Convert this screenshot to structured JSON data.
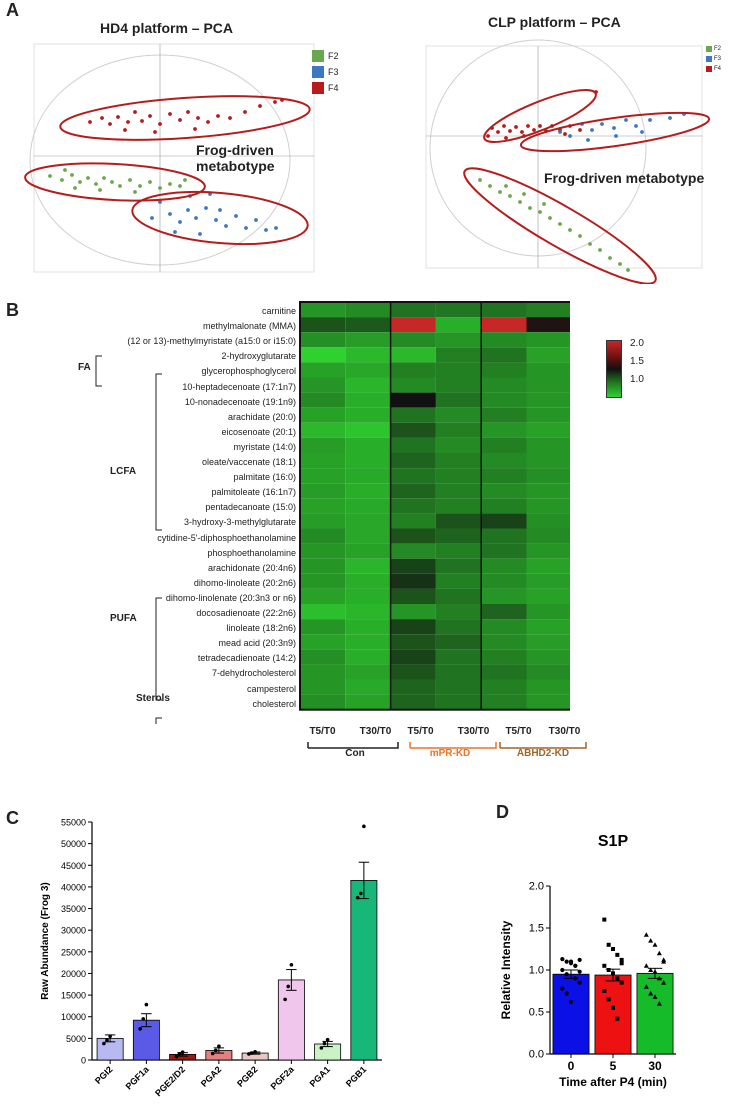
{
  "panels": {
    "a": "A",
    "b": "B",
    "c": "C",
    "d": "D"
  },
  "pca": {
    "hd4": {
      "title": "HD4 platform – PCA",
      "annotation": "Frog-driven metabotype"
    },
    "clp": {
      "title": "CLP platform – PCA",
      "annotation": "Frog-driven metabotype"
    },
    "legend": [
      {
        "label": "F2",
        "color": "#6aa84f"
      },
      {
        "label": "F3",
        "color": "#3d78c2"
      },
      {
        "label": "F4",
        "color": "#b71c1c"
      }
    ]
  },
  "heatmap": {
    "rows": [
      "carnitine",
      "methylmalonate (MMA)",
      "(12 or 13)-methylmyristate (a15:0 or i15:0)",
      "2-hydroxyglutarate",
      "glycerophosphoglycerol",
      "10-heptadecenoate (17:1n7)",
      "10-nonadecenoate (19:1n9)",
      "arachidate (20:0)",
      "eicosenoate (20:1)",
      "myristate (14:0)",
      "oleate/vaccenate (18:1)",
      "palmitate (16:0)",
      "palmitoleate (16:1n7)",
      "pentadecanoate (15:0)",
      "3-hydroxy-3-methylglutarate",
      "cytidine-5'-diphosphoethanolamine",
      "phosphoethanolamine",
      "arachidonate (20:4n6)",
      "dihomo-linoleate (20:2n6)",
      "dihomo-linolenate (20:3n3 or n6)",
      "docosadienoate (22:2n6)",
      "linoleate (18:2n6)",
      "mead acid (20:3n9)",
      "tetradecadienoate (14:2)",
      "7-dehydrocholesterol",
      "campesterol",
      "cholesterol"
    ],
    "groups": [
      "FA",
      "LCFA",
      "PUFA",
      "Sterols"
    ],
    "columns": [
      "T5/T0",
      "T30/T0",
      "T5/T0",
      "T30/T0",
      "T5/T0",
      "T30/T0"
    ],
    "conditions": [
      {
        "label": "Con",
        "color": "#222222"
      },
      {
        "label": "mPR-KD",
        "color": "#e8742a"
      },
      {
        "label": "ABHD2-KD",
        "color": "#a0652a"
      }
    ],
    "scale_ticks": [
      "2.0",
      "1.5",
      "1.0"
    ],
    "values": [
      [
        1.05,
        1.1,
        1.2,
        1.18,
        1.2,
        1.15
      ],
      [
        1.3,
        1.28,
        2.1,
        0.95,
        2.1,
        1.55
      ],
      [
        1.08,
        1.02,
        1.1,
        1.05,
        1.1,
        1.05
      ],
      [
        0.8,
        0.9,
        0.9,
        1.15,
        1.2,
        1.0
      ],
      [
        1.0,
        0.98,
        1.15,
        1.15,
        1.15,
        1.05
      ],
      [
        1.05,
        0.92,
        1.1,
        1.15,
        1.1,
        1.05
      ],
      [
        1.1,
        0.95,
        1.5,
        1.2,
        1.1,
        1.05
      ],
      [
        1.0,
        0.95,
        1.2,
        1.1,
        1.15,
        1.05
      ],
      [
        0.9,
        0.85,
        1.3,
        1.15,
        1.05,
        1.0
      ],
      [
        1.02,
        0.95,
        1.2,
        1.1,
        1.15,
        1.05
      ],
      [
        1.0,
        0.95,
        1.25,
        1.15,
        1.1,
        1.05
      ],
      [
        1.0,
        0.97,
        1.2,
        1.15,
        1.15,
        1.08
      ],
      [
        1.02,
        0.95,
        1.25,
        1.15,
        1.1,
        1.05
      ],
      [
        1.0,
        0.97,
        1.2,
        1.15,
        1.15,
        1.05
      ],
      [
        1.02,
        0.98,
        1.15,
        1.3,
        1.35,
        1.08
      ],
      [
        1.1,
        0.98,
        1.3,
        1.25,
        1.2,
        1.1
      ],
      [
        1.05,
        1.0,
        1.1,
        1.15,
        1.2,
        1.05
      ],
      [
        1.05,
        0.92,
        1.35,
        1.2,
        1.1,
        1.0
      ],
      [
        1.05,
        0.95,
        1.4,
        1.15,
        1.1,
        1.02
      ],
      [
        1.0,
        0.95,
        1.3,
        1.2,
        1.05,
        1.0
      ],
      [
        0.88,
        0.92,
        1.05,
        1.15,
        1.25,
        1.05
      ],
      [
        1.05,
        0.95,
        1.35,
        1.2,
        1.1,
        1.0
      ],
      [
        1.0,
        0.95,
        1.3,
        1.25,
        1.1,
        1.02
      ],
      [
        1.08,
        0.95,
        1.35,
        1.2,
        1.15,
        1.05
      ],
      [
        1.05,
        1.0,
        1.3,
        1.2,
        1.2,
        1.1
      ],
      [
        1.05,
        0.97,
        1.25,
        1.2,
        1.15,
        1.05
      ],
      [
        1.08,
        1.0,
        1.25,
        1.2,
        1.15,
        1.05
      ]
    ]
  },
  "chart_data": [
    {
      "type": "bar",
      "title": "",
      "xlabel": "",
      "ylabel": "Raw Abundance (Frog 3)",
      "ylim": [
        0,
        55000
      ],
      "yticks": [
        "0",
        "5000",
        "10000",
        "15000",
        "20000",
        "25000",
        "30000",
        "35000",
        "40000",
        "45000",
        "50000",
        "55000"
      ],
      "categories": [
        "PGI2",
        "PGF1a",
        "PGE2/D2",
        "PGA2",
        "PGB2",
        "PGF2a",
        "PGA1",
        "PGB1"
      ],
      "values": [
        5000,
        9200,
        1300,
        2200,
        1600,
        18500,
        3700,
        41500
      ],
      "errors": [
        800,
        1500,
        400,
        600,
        250,
        2400,
        600,
        4200
      ],
      "colors": [
        "#b9b9f2",
        "#5a5ae6",
        "#9b1b1b",
        "#e58080",
        "#e9c8c4",
        "#f1c6ec",
        "#c9f2c6",
        "#17b77a"
      ],
      "points": [
        [
          3800,
          4600,
          5500
        ],
        [
          7200,
          9500,
          12800
        ],
        [
          800,
          1400,
          1800
        ],
        [
          1500,
          2200,
          3200
        ],
        [
          1400,
          1600,
          1900
        ],
        [
          14000,
          17000,
          22000
        ],
        [
          2800,
          3800,
          4700
        ],
        [
          37500,
          38500,
          54000
        ]
      ]
    },
    {
      "type": "bar",
      "title": "S1P",
      "xlabel": "Time after P4 (min)",
      "ylabel": "Relative Intensity",
      "ylim": [
        0,
        2.0
      ],
      "yticks": [
        "0.0",
        "0.5",
        "1.0",
        "1.5",
        "2.0"
      ],
      "categories": [
        "0",
        "5",
        "30"
      ],
      "values": [
        0.95,
        0.94,
        0.96
      ],
      "errors": [
        0.05,
        0.07,
        0.06
      ],
      "colors": [
        "#0a10e6",
        "#ee1111",
        "#16bb2a"
      ],
      "points": [
        [
          1.13,
          1.1,
          1.08,
          1.05,
          1.12,
          1.0,
          0.95,
          1.1,
          0.9,
          0.85,
          0.78,
          0.72,
          0.62,
          1.05,
          0.98
        ],
        [
          1.6,
          1.3,
          1.25,
          1.18,
          1.12,
          1.05,
          1.0,
          0.96,
          0.9,
          0.85,
          0.75,
          0.65,
          0.55,
          0.42,
          1.08
        ],
        [
          1.42,
          1.35,
          1.3,
          1.2,
          1.12,
          1.05,
          1.0,
          0.98,
          0.9,
          0.85,
          0.8,
          0.72,
          0.68,
          0.6,
          1.1
        ]
      ]
    }
  ]
}
